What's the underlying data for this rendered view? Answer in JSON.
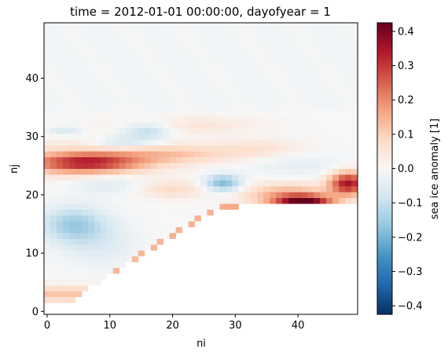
{
  "chart_data": {
    "type": "heatmap",
    "title": "time = 2012-01-01 00:00:00, dayofyear = 1",
    "xlabel": "ni",
    "ylabel": "nj",
    "xlim": [
      -0.5,
      49.5
    ],
    "ylim": [
      -0.5,
      49.5
    ],
    "xticks": [
      0,
      10,
      20,
      30,
      40
    ],
    "yticks": [
      0,
      10,
      20,
      30,
      40
    ],
    "colorbar": {
      "label": "sea ice anomaly [1]",
      "colormap": "RdBu_r",
      "vmin": -0.425,
      "vmax": 0.425,
      "ticks": [
        -0.4,
        -0.3,
        -0.2,
        -0.1,
        0.0,
        0.1,
        0.2,
        0.3,
        0.4
      ],
      "tick_labels": [
        "−0.4",
        "−0.3",
        "−0.2",
        "−0.1",
        "0.0",
        "0.1",
        "0.2",
        "0.3",
        "0.4"
      ]
    },
    "grid_shape": [
      50,
      50
    ],
    "value_components": {
      "north_band": {
        "nj_min": 35,
        "nj_max": 49,
        "value": -0.01
      },
      "warm_band_left": {
        "ni": 6,
        "nj": 25.5,
        "value": 0.3
      },
      "cool_patch_left": {
        "ni": 4,
        "nj": 15,
        "value": -0.14
      },
      "cool_patch_mid": {
        "ni": 16,
        "nj": 31,
        "value": -0.12
      },
      "cool_patch_center": {
        "ni": 28,
        "nj": 22,
        "value": -0.2
      },
      "warm_patch_right": {
        "ni": 41,
        "nj": 18.5,
        "value": 0.42
      },
      "warm_patch_far_right": {
        "ni": 48,
        "nj": 22,
        "value": 0.35
      }
    },
    "no_data_region": "lower right, below ice edge"
  }
}
